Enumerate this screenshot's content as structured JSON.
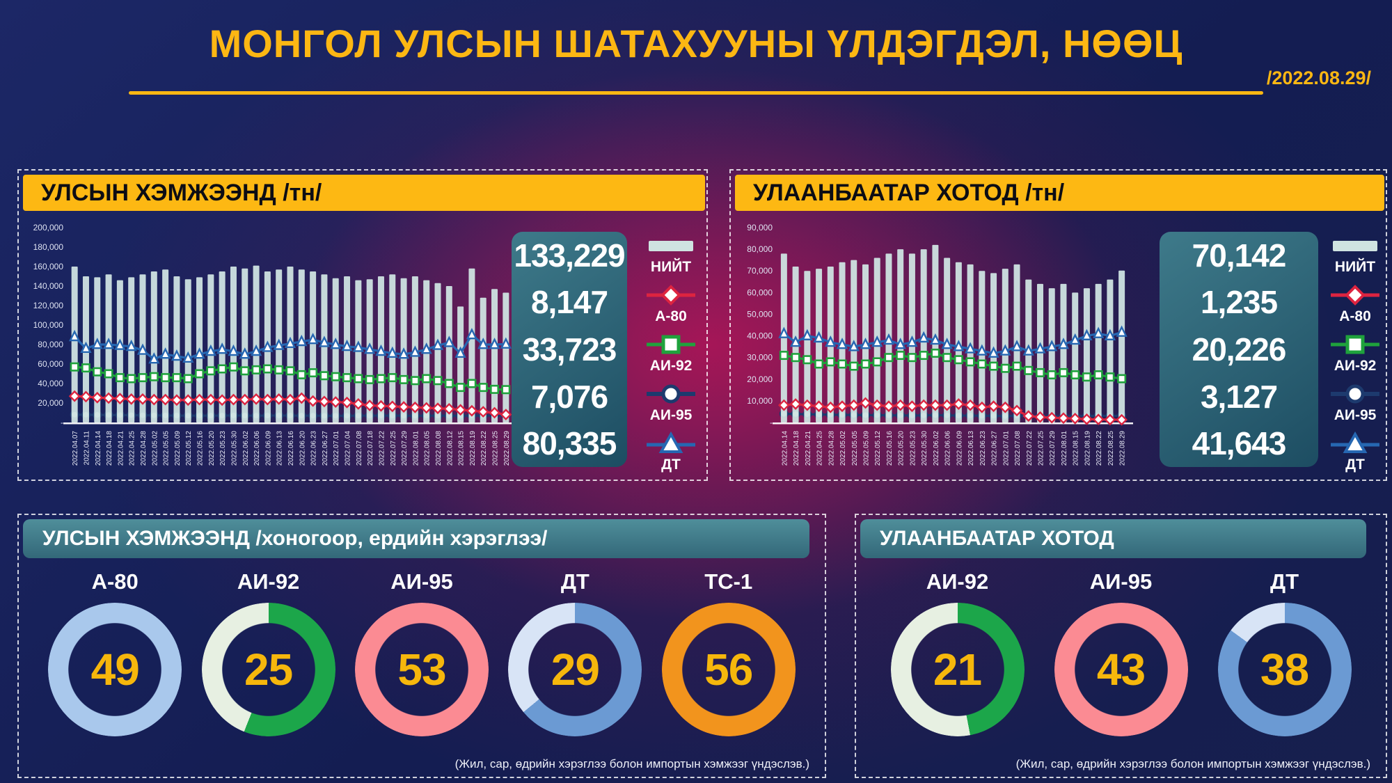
{
  "title": "МОНГОЛ УЛСЫН ШАТАХУУНЫ ҮЛДЭГДЭЛ, НӨӨЦ",
  "date": "/2022.08.29/",
  "colors": {
    "title_yellow": "#fcb713",
    "header_yellow": "#fdb813",
    "bar_fill": "#cfe3e1",
    "a80_red": "#dd2440",
    "ai92_green": "#1fa23c",
    "ai95_navy": "#1d3a6e",
    "dt_blue": "#2667b2",
    "gold_number": "#f6b70c",
    "summary_teal": "#2d6275"
  },
  "chart_data": [
    {
      "type": "bar",
      "title": "УЛСЫН ХЭМЖЭЭНД /тн/",
      "ylabel": "тн",
      "ylim": [
        0,
        200000
      ],
      "ytick_step": 20000,
      "zero_tick": "-",
      "legend_position": "right",
      "summary": [
        "133,229",
        "8,147",
        "33,723",
        "7,076",
        "80,335"
      ],
      "categories": [
        "2022.04.07",
        "2022.04.11",
        "2022.04.14",
        "2022.04.18",
        "2022.04.21",
        "2022.04.25",
        "2022.04.28",
        "2022.05.02",
        "2022.05.05",
        "2022.05.09",
        "2022.05.12",
        "2022.05.16",
        "2022.05.20",
        "2022.05.23",
        "2022.05.30",
        "2022.06.02",
        "2022.06.06",
        "2022.06.09",
        "2022.06.13",
        "2022.06.16",
        "2022.06.20",
        "2022.06.23",
        "2022.06.27",
        "2022.07.01",
        "2022.07.04",
        "2022.07.08",
        "2022.07.18",
        "2022.07.22",
        "2022.07.25",
        "2022.07.29",
        "2022.08.01",
        "2022.08.05",
        "2022.08.08",
        "2022.08.12",
        "2022.08.15",
        "2022.08.19",
        "2022.08.22",
        "2022.08.25",
        "2022.08.29"
      ],
      "series": [
        {
          "name": "НИЙТ",
          "type": "bar",
          "color": "#cfe3e1",
          "values": [
            160000,
            150000,
            149000,
            152000,
            146000,
            149000,
            152000,
            155000,
            157000,
            150000,
            147000,
            149000,
            152000,
            155000,
            160000,
            158000,
            161000,
            155000,
            157000,
            160000,
            157000,
            155000,
            152000,
            148000,
            150000,
            146000,
            147000,
            150000,
            152000,
            148000,
            150000,
            146000,
            143000,
            140000,
            119000,
            158000,
            128000,
            137000,
            133229
          ]
        },
        {
          "name": "А-80",
          "type": "line",
          "marker": "diamond",
          "color": "#dd2440",
          "values": [
            27000,
            26500,
            25500,
            25000,
            24500,
            24000,
            24000,
            23500,
            23500,
            23000,
            23000,
            23500,
            23500,
            23000,
            23500,
            23500,
            24000,
            23500,
            24000,
            23500,
            25000,
            22000,
            21500,
            21000,
            20500,
            19000,
            17500,
            17000,
            16500,
            16000,
            15500,
            15000,
            14500,
            14000,
            13000,
            12000,
            11000,
            10000,
            8147
          ]
        },
        {
          "name": "АИ-92",
          "type": "line",
          "marker": "square",
          "color": "#1fa23c",
          "values": [
            57000,
            56000,
            52000,
            50000,
            46000,
            45000,
            46000,
            47000,
            46000,
            46000,
            45000,
            50000,
            53000,
            55000,
            57000,
            53000,
            54000,
            55000,
            54000,
            53000,
            49000,
            51000,
            48000,
            47000,
            46000,
            45000,
            44000,
            45000,
            46000,
            44000,
            43000,
            45000,
            43000,
            40000,
            36000,
            40000,
            36000,
            34000,
            33723
          ]
        },
        {
          "name": "АИ-95",
          "type": "line",
          "marker": "circle",
          "color": "#1d3a6e",
          "values": [
            8000,
            7900,
            7800,
            7700,
            7600,
            7500,
            7400,
            7300,
            7200,
            7100,
            7000,
            7000,
            7000,
            7100,
            7200,
            7100,
            7000,
            7100,
            7200,
            7100,
            7000,
            7000,
            6900,
            6900,
            6900,
            7000,
            7000,
            7100,
            7000,
            7000,
            6900,
            7000,
            7000,
            7000,
            6800,
            7100,
            7000,
            7000,
            7076
          ]
        },
        {
          "name": "ДТ",
          "type": "line",
          "marker": "triangle",
          "color": "#2667b2",
          "values": [
            88000,
            76000,
            80000,
            80000,
            79000,
            78000,
            74000,
            65000,
            70000,
            68000,
            66000,
            70000,
            73000,
            75000,
            73000,
            70000,
            73000,
            77000,
            79000,
            81000,
            83000,
            85000,
            82000,
            80000,
            78000,
            77000,
            75000,
            73000,
            71000,
            70000,
            72000,
            75000,
            79000,
            82000,
            71000,
            90000,
            80000,
            80000,
            80335
          ]
        }
      ]
    },
    {
      "type": "bar",
      "title": "УЛААНБААТАР ХОТОД /тн/",
      "ylabel": "тн",
      "ylim": [
        0,
        90000
      ],
      "ytick_step": 10000,
      "zero_tick": "-",
      "legend_position": "right",
      "summary": [
        "70,142",
        "1,235",
        "20,226",
        "3,127",
        "41,643"
      ],
      "categories": [
        "2022.04.14",
        "2022.04.18",
        "2022.04.21",
        "2022.04.25",
        "2022.04.28",
        "2022.05.02",
        "2022.05.05",
        "2022.05.09",
        "2022.05.12",
        "2022.05.16",
        "2022.05.20",
        "2022.05.23",
        "2022.05.30",
        "2022.06.02",
        "2022.06.06",
        "2022.06.09",
        "2022.06.13",
        "2022.06.23",
        "2022.06.27",
        "2022.07.01",
        "2022.07.08",
        "2022.07.22",
        "2022.07.25",
        "2022.07.29",
        "2022.08.01",
        "2022.08.15",
        "2022.08.19",
        "2022.08.22",
        "2022.08.25",
        "2022.08.29"
      ],
      "series": [
        {
          "name": "НИЙТ",
          "type": "bar",
          "color": "#cfe3e1",
          "values": [
            78000,
            72000,
            70000,
            71000,
            72000,
            74000,
            75000,
            73000,
            76000,
            78000,
            80000,
            78000,
            80000,
            82000,
            76000,
            74000,
            73000,
            70000,
            69000,
            71000,
            73000,
            66000,
            64000,
            62000,
            64000,
            60000,
            62000,
            64000,
            66000,
            70142
          ]
        },
        {
          "name": "А-80",
          "type": "line",
          "marker": "diamond",
          "color": "#dd2440",
          "values": [
            8000,
            8500,
            8000,
            7500,
            7000,
            7500,
            8000,
            9000,
            8000,
            7500,
            8000,
            7500,
            8000,
            8000,
            8000,
            8500,
            8000,
            7000,
            7500,
            7000,
            5500,
            3000,
            2500,
            2200,
            2000,
            1800,
            1500,
            1400,
            1300,
            1235
          ]
        },
        {
          "name": "АИ-92",
          "type": "line",
          "marker": "square",
          "color": "#1fa23c",
          "values": [
            31000,
            30000,
            29000,
            27000,
            28000,
            27000,
            26000,
            27000,
            28000,
            30000,
            31000,
            30000,
            31000,
            32000,
            30000,
            29000,
            28000,
            27000,
            26000,
            25000,
            26000,
            24000,
            23000,
            22000,
            23000,
            22000,
            21000,
            22000,
            21000,
            20226
          ]
        },
        {
          "name": "АИ-95",
          "type": "line",
          "marker": "circle",
          "color": "#1d3a6e",
          "values": [
            4000,
            3900,
            3800,
            3700,
            3600,
            3500,
            3500,
            3400,
            3400,
            3300,
            3300,
            3200,
            3300,
            3400,
            3300,
            3200,
            3200,
            3100,
            3100,
            3000,
            3100,
            3000,
            3000,
            2900,
            3000,
            3100,
            3000,
            3100,
            3000,
            3127
          ]
        },
        {
          "name": "ДТ",
          "type": "line",
          "marker": "triangle",
          "color": "#2667b2",
          "values": [
            41000,
            37000,
            40000,
            39000,
            37000,
            36000,
            35000,
            36000,
            37000,
            38000,
            36000,
            37000,
            39000,
            38000,
            36000,
            35000,
            34000,
            33000,
            32000,
            33000,
            35000,
            33000,
            34000,
            35000,
            36000,
            38000,
            40000,
            41000,
            40000,
            41643
          ]
        }
      ]
    },
    {
      "type": "pie",
      "title": "УЛСЫН ХЭМЖЭЭНД /хоногоор, ердийн хэрэглээ/",
      "footnote": "(Жил, сар, өдрийн хэрэглээ болон импортын хэмжээг үндэслэв.)",
      "donuts": [
        {
          "label": "А-80",
          "value": 49,
          "fill_pct": 100,
          "color": "#a9c8ec",
          "track": "#a9c8ec"
        },
        {
          "label": "АИ-92",
          "value": 25,
          "fill_pct": 56,
          "color": "#1ca64a",
          "track": "#e7f0e2"
        },
        {
          "label": "АИ-95",
          "value": 53,
          "fill_pct": 100,
          "color": "#fb8b93",
          "track": "#fb8b93"
        },
        {
          "label": "ДТ",
          "value": 29,
          "fill_pct": 64,
          "color": "#6b9ad3",
          "track": "#d8e4f6"
        },
        {
          "label": "ТС-1",
          "value": 56,
          "fill_pct": 100,
          "color": "#f2941d",
          "track": "#f2941d"
        }
      ]
    },
    {
      "type": "pie",
      "title": "УЛААНБААТАР ХОТОД",
      "footnote": "(Жил, сар, өдрийн хэрэглээ болон импортын хэмжээг үндэслэв.)",
      "donuts": [
        {
          "label": "АИ-92",
          "value": 21,
          "fill_pct": 47,
          "color": "#1ca64a",
          "track": "#e7f0e2"
        },
        {
          "label": "АИ-95",
          "value": 43,
          "fill_pct": 100,
          "color": "#fb8b93",
          "track": "#fb8b93"
        },
        {
          "label": "ДТ",
          "value": 38,
          "fill_pct": 85,
          "color": "#6b9ad3",
          "track": "#d8e4f6"
        }
      ]
    }
  ]
}
